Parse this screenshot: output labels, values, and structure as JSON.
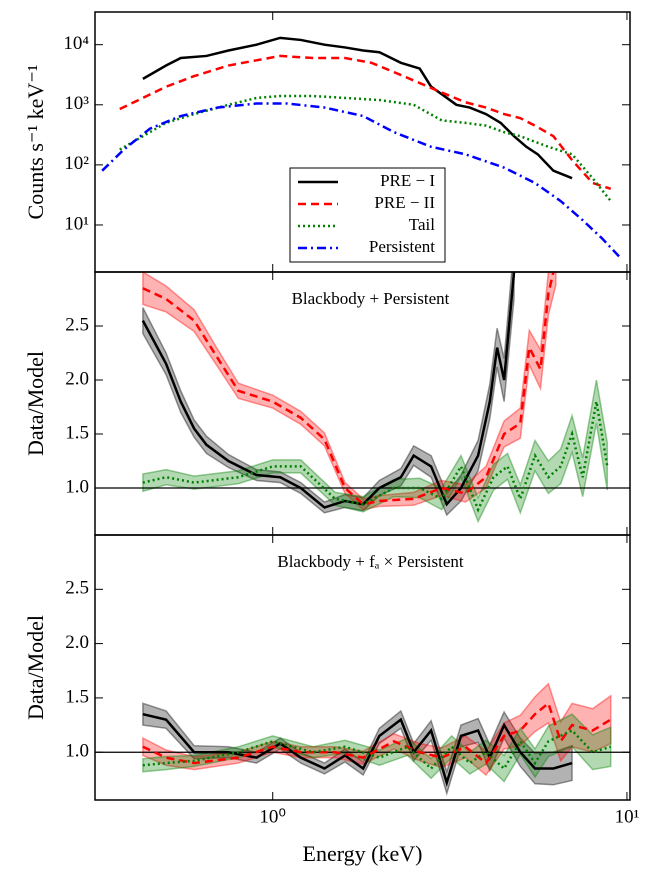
{
  "chart_data": [
    {
      "type": "line",
      "xscale": "log",
      "yscale": "log",
      "xlim": [
        0.315,
        10.2
      ],
      "ylim": [
        1.65,
        35000
      ],
      "ylabel": "Counts s⁻¹ keV⁻¹",
      "yticks": [
        {
          "value": 10,
          "label": "10¹"
        },
        {
          "value": 100,
          "label": "10²"
        },
        {
          "value": 1000,
          "label": "10³"
        },
        {
          "value": 10000,
          "label": "10⁴"
        }
      ],
      "legend": "lower center",
      "series": [
        {
          "name": "PRE − I",
          "color": "#000000",
          "linestyle": "solid",
          "x": [
            0.43,
            0.5,
            0.55,
            0.65,
            0.75,
            0.9,
            1.05,
            1.2,
            1.4,
            1.6,
            1.8,
            2.0,
            2.3,
            2.6,
            2.8,
            3.0,
            3.3,
            3.6,
            4.0,
            4.4,
            4.8,
            5.2,
            5.6,
            6.2,
            7.0
          ],
          "values": [
            2700,
            4500,
            6000,
            6500,
            8000,
            10000,
            13000,
            12000,
            10000,
            9000,
            8000,
            7500,
            5000,
            4000,
            2000,
            1500,
            1000,
            900,
            700,
            500,
            300,
            200,
            150,
            80,
            60
          ]
        },
        {
          "name": "PRE − II",
          "color": "#ff0000",
          "linestyle": "dashed",
          "x": [
            0.37,
            0.43,
            0.5,
            0.6,
            0.75,
            0.9,
            1.05,
            1.3,
            1.6,
            1.9,
            2.2,
            2.6,
            3.0,
            3.5,
            4.0,
            4.5,
            5.0,
            5.5,
            6.2,
            7.0,
            8.0,
            9.0
          ],
          "values": [
            850,
            1300,
            2000,
            3000,
            4500,
            5500,
            6500,
            6000,
            6000,
            5000,
            3500,
            2300,
            1600,
            1100,
            900,
            700,
            600,
            450,
            300,
            120,
            50,
            40
          ]
        },
        {
          "name": "Tail",
          "color": "#008000",
          "linestyle": "dotted",
          "x": [
            0.37,
            0.43,
            0.5,
            0.6,
            0.75,
            0.9,
            1.05,
            1.3,
            1.6,
            2.0,
            2.5,
            3.0,
            3.5,
            4.0,
            4.5,
            5.0,
            6.0,
            7.0,
            8.0,
            9.0
          ],
          "values": [
            180,
            300,
            500,
            700,
            1000,
            1300,
            1400,
            1400,
            1300,
            1200,
            1000,
            550,
            500,
            450,
            350,
            300,
            200,
            150,
            60,
            25
          ]
        },
        {
          "name": "Persistent",
          "color": "#0000ff",
          "linestyle": "dashdot",
          "x": [
            0.33,
            0.38,
            0.45,
            0.55,
            0.7,
            0.9,
            1.1,
            1.4,
            1.8,
            2.2,
            2.8,
            3.5,
            4.5,
            5.5,
            6.5,
            7.5,
            8.5,
            9.5
          ],
          "values": [
            80,
            180,
            400,
            650,
            900,
            1050,
            1050,
            900,
            650,
            350,
            200,
            150,
            90,
            50,
            25,
            12,
            6,
            3
          ]
        }
      ]
    },
    {
      "type": "line",
      "xscale": "log",
      "xlim": [
        0.315,
        10.2
      ],
      "ylim": [
        0.565,
        3.0
      ],
      "ylabel": "Data/Model",
      "annotation": "Blackbody + Persistent",
      "hline": 1,
      "yticks": [
        {
          "value": 1,
          "label": "1.0"
        },
        1.5,
        {
          "value": 2,
          "label": "2.0"
        },
        2.5
      ],
      "series": [
        {
          "color": "#000000",
          "linestyle": "solid",
          "x": [
            0.43,
            0.5,
            0.55,
            0.6,
            0.65,
            0.75,
            0.9,
            1.05,
            1.2,
            1.4,
            1.6,
            1.8,
            2.0,
            2.3,
            2.5,
            2.8,
            3.1,
            3.4,
            3.8,
            4.1,
            4.3,
            4.5,
            4.8
          ],
          "values": [
            2.55,
            2.15,
            1.8,
            1.55,
            1.4,
            1.25,
            1.12,
            1.1,
            1.0,
            0.82,
            0.88,
            0.85,
            1.0,
            1.1,
            1.3,
            1.2,
            0.85,
            1.0,
            1.3,
            1.8,
            2.3,
            2.0,
            3.0
          ],
          "errors": [
            0.12,
            0.1,
            0.1,
            0.08,
            0.08,
            0.06,
            0.05,
            0.05,
            0.05,
            0.05,
            0.06,
            0.06,
            0.07,
            0.08,
            0.09,
            0.1,
            0.1,
            0.12,
            0.14,
            0.16,
            0.18,
            0.2,
            0.25
          ]
        },
        {
          "color": "#ff0000",
          "linestyle": "dashed",
          "x": [
            0.43,
            0.5,
            0.6,
            0.7,
            0.8,
            1.0,
            1.2,
            1.4,
            1.6,
            1.8,
            2.0,
            2.5,
            3.0,
            3.5,
            4.0,
            4.5,
            5.0,
            5.3,
            5.7,
            6.0,
            6.3
          ],
          "values": [
            2.85,
            2.75,
            2.55,
            2.2,
            1.9,
            1.8,
            1.65,
            1.45,
            1.0,
            0.85,
            0.88,
            0.9,
            1.0,
            0.95,
            1.1,
            1.5,
            1.6,
            2.3,
            2.1,
            2.8,
            3.1
          ],
          "errors": [
            0.15,
            0.12,
            0.1,
            0.08,
            0.07,
            0.06,
            0.06,
            0.06,
            0.05,
            0.05,
            0.05,
            0.06,
            0.07,
            0.08,
            0.1,
            0.12,
            0.14,
            0.16,
            0.18,
            0.2,
            0.22
          ]
        },
        {
          "color": "#008000",
          "linestyle": "dotted",
          "x": [
            0.43,
            0.5,
            0.6,
            0.8,
            1.0,
            1.2,
            1.5,
            1.8,
            2.2,
            2.6,
            3.0,
            3.4,
            3.8,
            4.2,
            4.6,
            5.0,
            5.5,
            6.0,
            6.5,
            7.0,
            7.5,
            8.2,
            8.8
          ],
          "values": [
            1.05,
            1.1,
            1.05,
            1.1,
            1.2,
            1.2,
            0.9,
            0.85,
            1.0,
            1.0,
            0.9,
            1.2,
            0.8,
            1.1,
            1.2,
            0.9,
            1.3,
            1.1,
            1.2,
            1.5,
            1.1,
            1.8,
            1.2
          ],
          "errors": [
            0.08,
            0.07,
            0.06,
            0.06,
            0.06,
            0.06,
            0.06,
            0.07,
            0.08,
            0.09,
            0.1,
            0.1,
            0.11,
            0.12,
            0.12,
            0.13,
            0.14,
            0.15,
            0.16,
            0.17,
            0.18,
            0.2,
            0.22
          ]
        }
      ]
    },
    {
      "type": "line",
      "xscale": "log",
      "xlim": [
        0.315,
        10.2
      ],
      "ylim": [
        0.56,
        3.0
      ],
      "ylabel": "Data/Model",
      "xlabel": "Energy (keV)",
      "annotation": "Blackbody + fₐ × Persistent",
      "hline": 1,
      "xticks": [
        {
          "value": 1,
          "label": "10⁰"
        },
        {
          "value": 10,
          "label": "10¹"
        }
      ],
      "yticks": [
        {
          "value": 1,
          "label": "1.0"
        },
        1.5,
        {
          "value": 2,
          "label": "2.0"
        },
        2.5
      ],
      "series": [
        {
          "color": "#000000",
          "linestyle": "solid",
          "x": [
            0.43,
            0.5,
            0.6,
            0.75,
            0.9,
            1.05,
            1.2,
            1.4,
            1.6,
            1.8,
            2.0,
            2.3,
            2.5,
            2.8,
            3.1,
            3.4,
            3.8,
            4.1,
            4.5,
            5.0,
            5.5,
            6.2,
            7.0
          ],
          "values": [
            1.35,
            1.3,
            1.0,
            1.0,
            0.95,
            1.08,
            0.95,
            0.85,
            0.97,
            0.85,
            1.15,
            1.3,
            1.0,
            1.2,
            0.72,
            1.15,
            1.2,
            0.95,
            1.25,
            1.0,
            0.85,
            0.85,
            0.9
          ],
          "errors": [
            0.1,
            0.08,
            0.06,
            0.05,
            0.05,
            0.05,
            0.05,
            0.05,
            0.06,
            0.06,
            0.07,
            0.08,
            0.08,
            0.09,
            0.1,
            0.1,
            0.11,
            0.12,
            0.12,
            0.13,
            0.14,
            0.15,
            0.16
          ]
        },
        {
          "color": "#ff0000",
          "linestyle": "dashed",
          "x": [
            0.43,
            0.5,
            0.6,
            0.8,
            1.0,
            1.2,
            1.5,
            1.8,
            2.2,
            2.6,
            3.0,
            3.5,
            4.0,
            4.5,
            5.0,
            5.5,
            6.0,
            6.5,
            7.0,
            8.0,
            9.0
          ],
          "values": [
            1.05,
            0.95,
            0.9,
            0.95,
            1.05,
            1.0,
            1.0,
            0.95,
            1.1,
            1.0,
            0.95,
            1.05,
            0.9,
            1.15,
            1.2,
            1.35,
            1.45,
            1.1,
            1.25,
            1.2,
            1.3
          ],
          "errors": [
            0.08,
            0.07,
            0.06,
            0.05,
            0.05,
            0.05,
            0.05,
            0.06,
            0.07,
            0.08,
            0.09,
            0.1,
            0.11,
            0.12,
            0.14,
            0.16,
            0.18,
            0.18,
            0.2,
            0.2,
            0.22
          ]
        },
        {
          "color": "#008000",
          "linestyle": "dotted",
          "x": [
            0.43,
            0.5,
            0.6,
            0.8,
            1.0,
            1.3,
            1.6,
            2.0,
            2.4,
            2.8,
            3.2,
            3.6,
            4.0,
            4.5,
            5.0,
            5.5,
            6.0,
            7.0,
            8.0,
            9.0
          ],
          "values": [
            0.88,
            0.9,
            0.92,
            1.0,
            1.1,
            1.0,
            1.05,
            0.95,
            1.05,
            0.85,
            1.05,
            0.9,
            1.0,
            0.85,
            1.1,
            0.9,
            1.1,
            1.2,
            1.0,
            1.05
          ],
          "errors": [
            0.06,
            0.06,
            0.05,
            0.05,
            0.05,
            0.05,
            0.06,
            0.07,
            0.08,
            0.09,
            0.1,
            0.1,
            0.11,
            0.12,
            0.12,
            0.13,
            0.14,
            0.15,
            0.16,
            0.18
          ]
        }
      ]
    }
  ]
}
